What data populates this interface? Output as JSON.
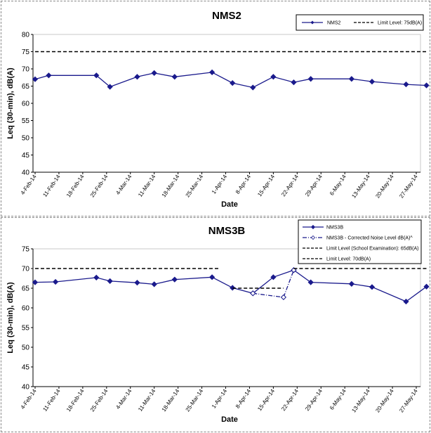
{
  "chart_data": [
    {
      "type": "line",
      "title": "NMS2",
      "xlabel": "Date",
      "ylabel": "Leq (30-min), dB(A)",
      "ylim": [
        40,
        80
      ],
      "yticks": [
        "40",
        "45",
        "50",
        "55",
        "60",
        "65",
        "70",
        "75",
        "80"
      ],
      "categories": [
        "4-Feb-14",
        "11-Feb-14",
        "18-Feb-14",
        "25-Feb-14",
        "4-Mar-14",
        "11-Mar-14",
        "18-Mar-14",
        "25-Mar-14",
        "1-Apr-14",
        "8-Apr-14",
        "15-Apr-14",
        "22-Apr-14",
        "29-Apr-14",
        "6-May-14",
        "13-May-14",
        "20-May-14",
        "27-May-14"
      ],
      "grid": false,
      "legend_position": "top-right",
      "series": [
        {
          "name": "NMS2",
          "style": "solid-diamond",
          "color": "#1a1a8c",
          "points": [
            {
              "x": "4-Feb-14",
              "y": 67.0
            },
            {
              "x": "8-Feb-14",
              "y": 68.1
            },
            {
              "x": "22-Feb-14",
              "y": 68.1
            },
            {
              "x": "26-Feb-14",
              "y": 64.8
            },
            {
              "x": "6-Mar-14",
              "y": 67.7
            },
            {
              "x": "11-Mar-14",
              "y": 68.8
            },
            {
              "x": "17-Mar-14",
              "y": 67.7
            },
            {
              "x": "28-Mar-14",
              "y": 69.0
            },
            {
              "x": "3-Apr-14",
              "y": 65.9
            },
            {
              "x": "9-Apr-14",
              "y": 64.6
            },
            {
              "x": "15-Apr-14",
              "y": 67.7
            },
            {
              "x": "21-Apr-14",
              "y": 66.1
            },
            {
              "x": "26-Apr-14",
              "y": 67.1
            },
            {
              "x": "8-May-14",
              "y": 67.1
            },
            {
              "x": "14-May-14",
              "y": 66.3
            },
            {
              "x": "24-May-14",
              "y": 65.5
            },
            {
              "x": "30-May-14",
              "y": 65.2
            }
          ]
        },
        {
          "name": "Limit Level:  75dB(A)",
          "style": "dashed",
          "color": "#000000",
          "points": [
            {
              "x": "4-Feb-14",
              "y": 75
            },
            {
              "x": "30-May-14",
              "y": 75
            }
          ]
        }
      ]
    },
    {
      "type": "line",
      "title": "NMS3B",
      "xlabel": "Date",
      "ylabel": "Leq (30-min), dB(A)",
      "ylim": [
        40,
        75
      ],
      "yticks": [
        "40",
        "45",
        "50",
        "55",
        "60",
        "65",
        "70",
        "75"
      ],
      "categories": [
        "4-Feb-14",
        "11-Feb-14",
        "18-Feb-14",
        "25-Feb-14",
        "4-Mar-14",
        "11-Mar-14",
        "18-Mar-14",
        "25-Mar-14",
        "1-Apr-14",
        "8-Apr-14",
        "15-Apr-14",
        "22-Apr-14",
        "29-Apr-14",
        "6-May-14",
        "13-May-14",
        "20-May-14",
        "27-May-14"
      ],
      "grid": false,
      "legend_position": "top-right",
      "series": [
        {
          "name": "NMS3B",
          "style": "solid-diamond",
          "color": "#1a1a8c",
          "points": [
            {
              "x": "4-Feb-14",
              "y": 66.5
            },
            {
              "x": "10-Feb-14",
              "y": 66.6
            },
            {
              "x": "22-Feb-14",
              "y": 67.7
            },
            {
              "x": "26-Feb-14",
              "y": 66.8
            },
            {
              "x": "6-Mar-14",
              "y": 66.4
            },
            {
              "x": "11-Mar-14",
              "y": 66.0
            },
            {
              "x": "17-Mar-14",
              "y": 67.2
            },
            {
              "x": "28-Mar-14",
              "y": 67.8
            },
            {
              "x": "3-Apr-14",
              "y": 65.1
            },
            {
              "x": "9-Apr-14",
              "y": 63.7
            },
            {
              "x": "15-Apr-14",
              "y": 67.8
            },
            {
              "x": "21-Apr-14",
              "y": 69.6
            },
            {
              "x": "26-Apr-14",
              "y": 66.5
            },
            {
              "x": "8-May-14",
              "y": 66.1
            },
            {
              "x": "14-May-14",
              "y": 65.3
            },
            {
              "x": "24-May-14",
              "y": 61.6
            },
            {
              "x": "30-May-14",
              "y": 65.4
            }
          ]
        },
        {
          "name": "NMS3B - Corrected Noise Level dB(A)^",
          "style": "dashdot-open-diamond",
          "color": "#1a1a8c",
          "points": [
            {
              "x": "9-Apr-14",
              "y": 63.7
            },
            {
              "x": "18-Apr-14",
              "y": 62.7
            },
            {
              "x": "21-Apr-14",
              "y": 69.6
            }
          ]
        },
        {
          "name": "Limit Level (School Examination): 65dB(A)",
          "style": "dashed",
          "color": "#000000",
          "points": [
            {
              "x": "3-Apr-14",
              "y": 65
            },
            {
              "x": "18-Apr-14",
              "y": 65
            }
          ]
        },
        {
          "name": "Limit Level:  70dB(A)",
          "style": "dashed",
          "color": "#000000",
          "points": [
            {
              "x": "4-Feb-14",
              "y": 70
            },
            {
              "x": "30-Mar-14",
              "y": 70
            },
            {
              "x": "21-Apr-14",
              "y": 70
            },
            {
              "x": "30-May-14",
              "y": 70
            }
          ]
        }
      ]
    }
  ]
}
